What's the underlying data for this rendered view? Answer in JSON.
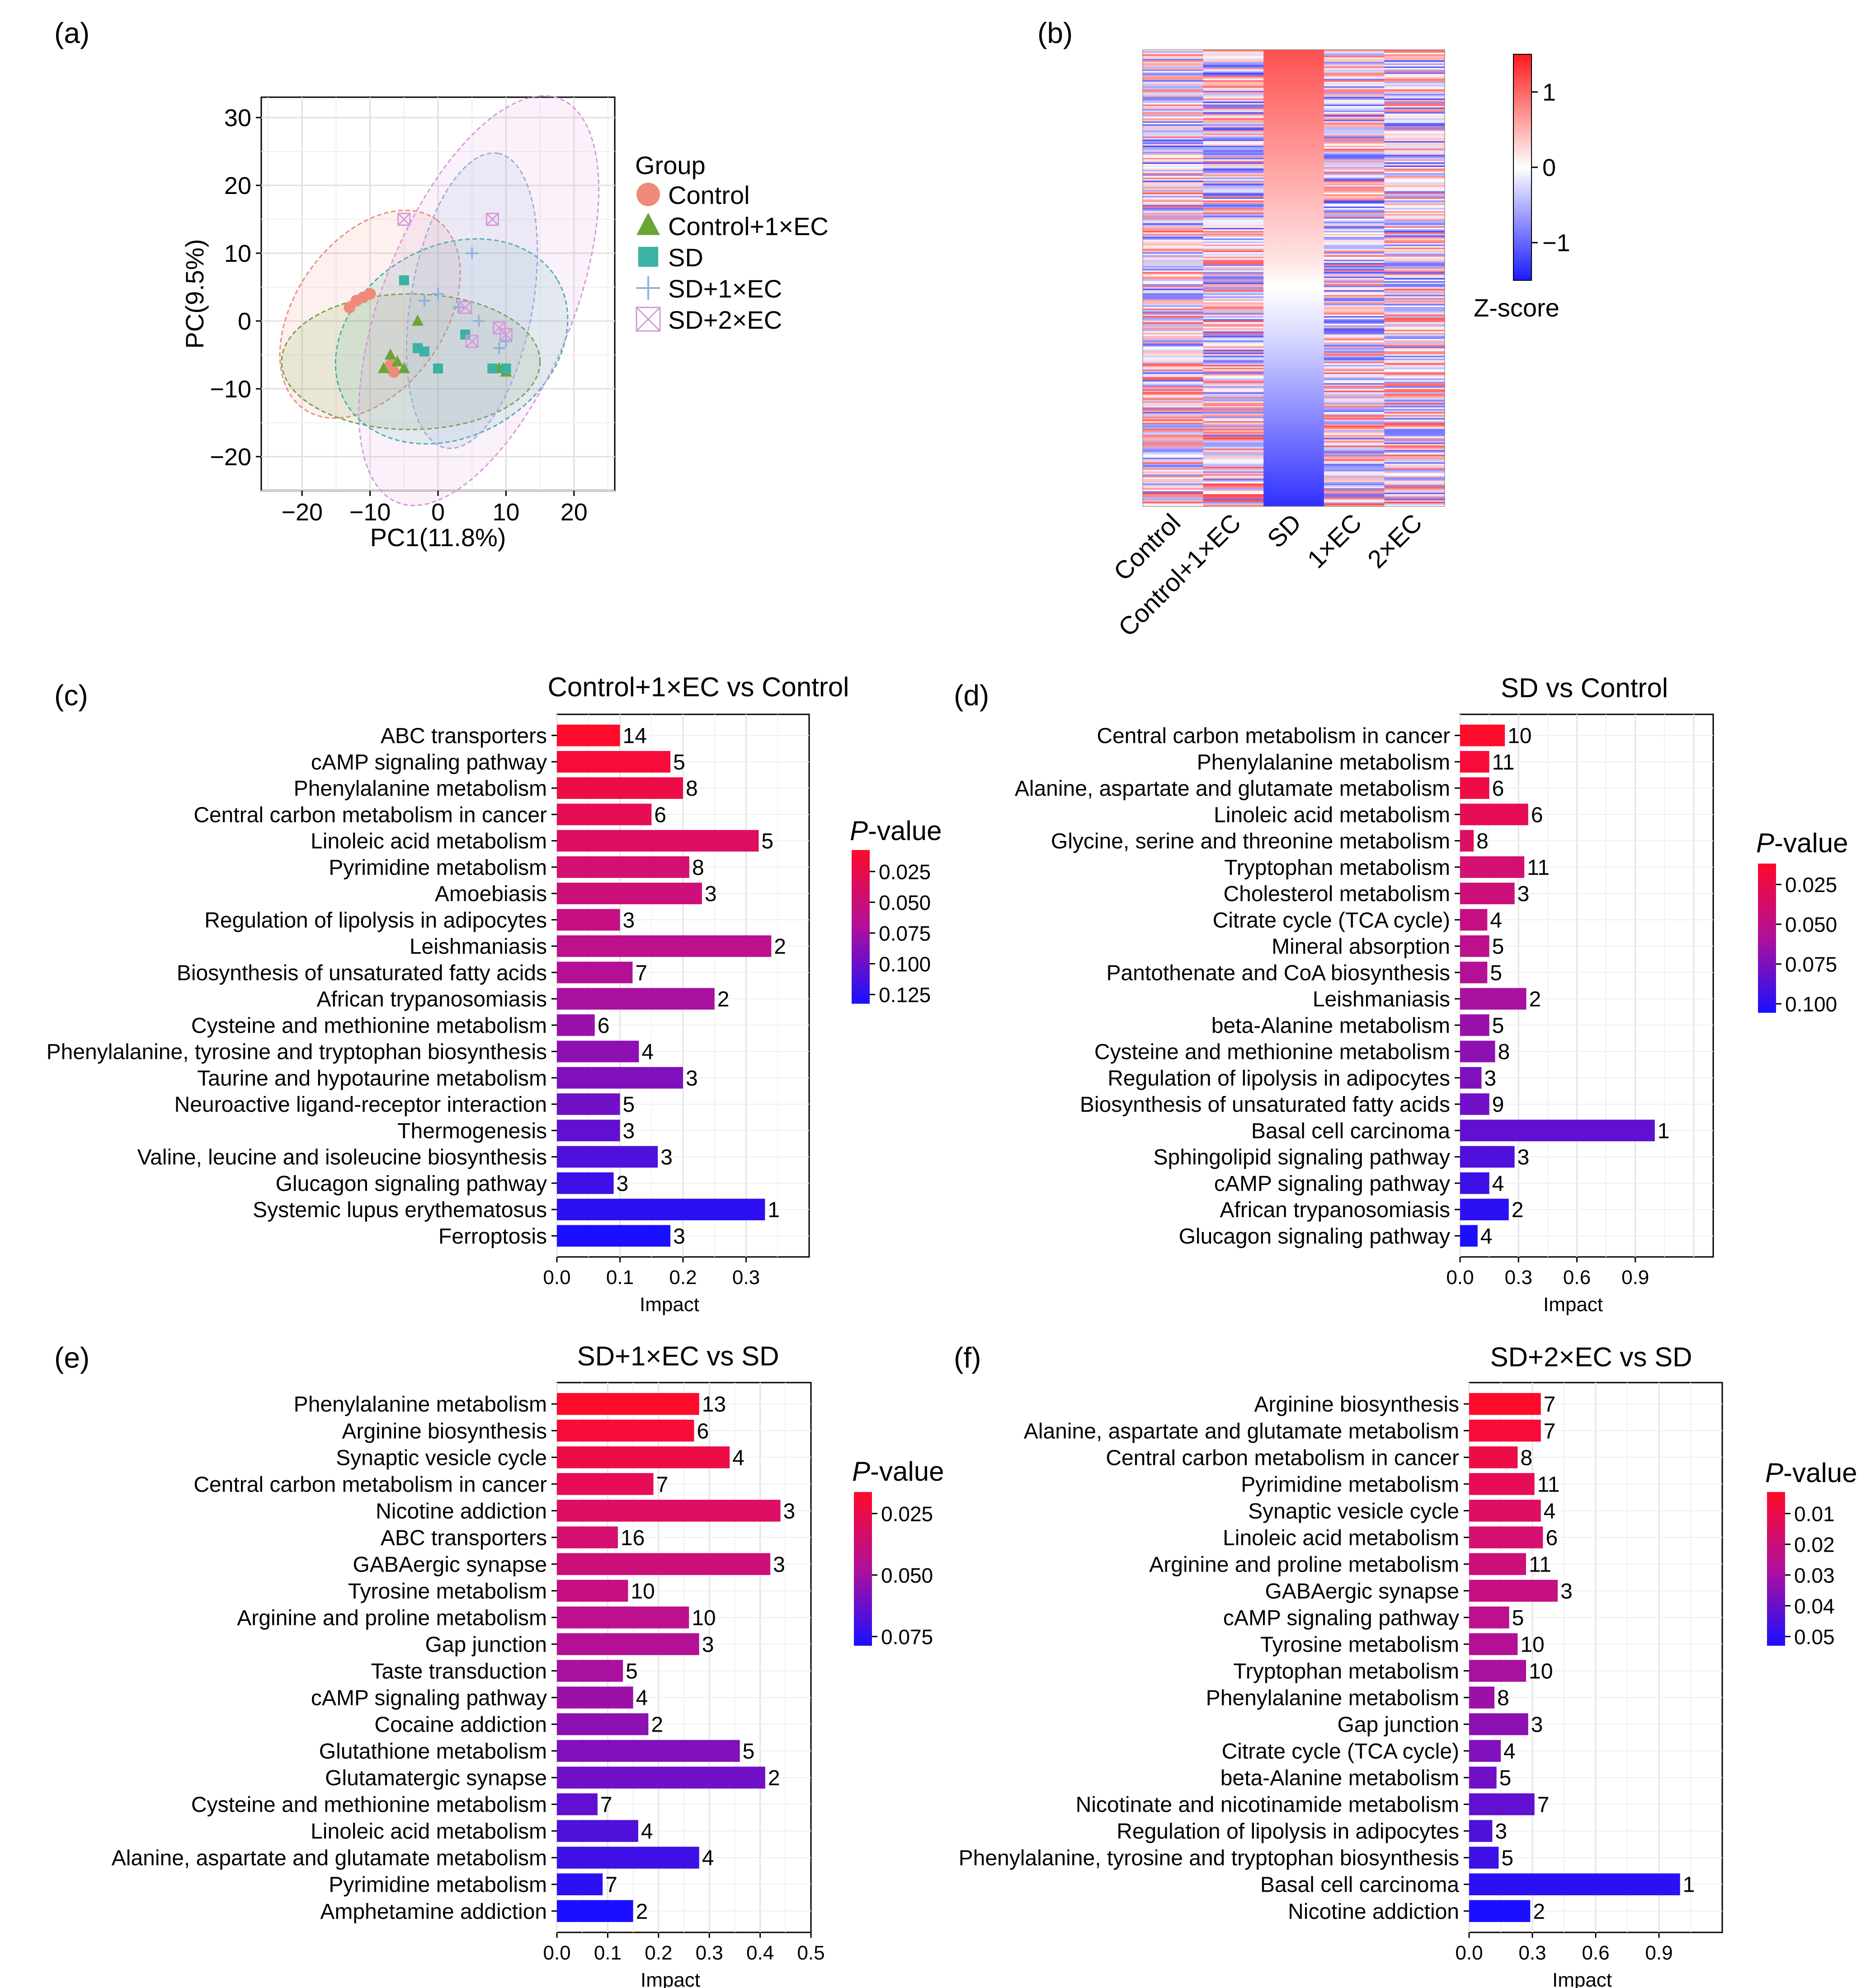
{
  "colors": {
    "control": "#f08a7a",
    "control_ec": "#6aa537",
    "sd": "#3bb2a4",
    "sd_1ec": "#8fb1de",
    "sd_2ec": "#d896dc",
    "heat_high": "#ff2a2a",
    "heat_mid": "#ffffff",
    "heat_low": "#1a1aff"
  },
  "panels": {
    "a": {
      "label": "(a)"
    },
    "b": {
      "label": "(b)"
    },
    "c": {
      "label": "(c)"
    },
    "d": {
      "label": "(d)"
    },
    "e": {
      "label": "(e)"
    },
    "f": {
      "label": "(f)"
    }
  },
  "chart_data": [
    {
      "id": "a",
      "type": "scatter",
      "xlabel": "PC1(11.8%)",
      "ylabel": "PC(9.5%)",
      "xlim": [
        -26,
        26
      ],
      "ylim": [
        -25,
        33
      ],
      "xticks": [
        -20,
        -10,
        0,
        10,
        20
      ],
      "yticks": [
        -20,
        -10,
        0,
        10,
        20,
        30
      ],
      "legend_title": "Group",
      "series": [
        {
          "name": "Control",
          "marker": "circle",
          "color_key": "control",
          "points": [
            [
              -13,
              2
            ],
            [
              -12,
              3
            ],
            [
              -11,
              3.5
            ],
            [
              -10,
              4
            ],
            [
              -7,
              -6.5
            ],
            [
              -6.5,
              -7.5
            ]
          ],
          "ellipse": {
            "cx": -10,
            "cy": 1,
            "rx": 17,
            "ry": 11,
            "angle": -55
          }
        },
        {
          "name": "Control+1×EC",
          "marker": "triangle",
          "color_key": "control_ec",
          "points": [
            [
              -8,
              -7
            ],
            [
              -7,
              -5
            ],
            [
              -6,
              -6
            ],
            [
              -5,
              -7
            ],
            [
              -3,
              0
            ],
            [
              9,
              -7
            ],
            [
              10,
              -7.5
            ]
          ],
          "ellipse": {
            "cx": -4,
            "cy": -6,
            "rx": 19,
            "ry": 10,
            "angle": 0
          }
        },
        {
          "name": "SD",
          "marker": "square",
          "color_key": "sd",
          "points": [
            [
              -5,
              6
            ],
            [
              -3,
              -4
            ],
            [
              -2,
              -4.5
            ],
            [
              0,
              -7
            ],
            [
              4,
              -2
            ],
            [
              8,
              -7
            ],
            [
              10,
              -7
            ]
          ],
          "ellipse": {
            "cx": 2,
            "cy": -3,
            "rx": 18,
            "ry": 14,
            "angle": -30
          }
        },
        {
          "name": "SD+1×EC",
          "marker": "plus",
          "color_key": "sd_1ec",
          "points": [
            [
              -2,
              3
            ],
            [
              0,
              4
            ],
            [
              3,
              2
            ],
            [
              5,
              10
            ],
            [
              6,
              0
            ],
            [
              9,
              -4
            ],
            [
              10,
              -3
            ]
          ],
          "ellipse": {
            "cx": 5,
            "cy": 3,
            "rx": 22,
            "ry": 9,
            "angle": -80
          }
        },
        {
          "name": "SD+2×EC",
          "marker": "boxx",
          "color_key": "sd_2ec",
          "points": [
            [
              -5,
              15
            ],
            [
              4,
              2
            ],
            [
              5,
              -3
            ],
            [
              8,
              15
            ],
            [
              9,
              -1
            ],
            [
              10,
              -2
            ]
          ],
          "ellipse": {
            "cx": 6,
            "cy": 3,
            "rx": 32,
            "ry": 14,
            "angle": -68
          }
        }
      ]
    },
    {
      "id": "b",
      "type": "heatmap",
      "columns": [
        "Control",
        "Control+1×EC",
        "SD",
        "1×EC",
        "2×EC"
      ],
      "legend_title": "Z-score",
      "legend_ticks": [
        1,
        0,
        -1
      ],
      "legend_tick_labels": [
        "1",
        "0",
        "−1"
      ],
      "z_range": [
        -1.5,
        1.5
      ],
      "n_rows": 300,
      "sd_column_trend": "sorted descending from high (top) to low (bottom)"
    },
    {
      "id": "c",
      "type": "bar",
      "title": "Control+1×EC vs Control",
      "xlabel": "Impact",
      "xlim": [
        0,
        0.4
      ],
      "xticks": [
        0,
        0.1,
        0.2,
        0.3
      ],
      "xtick_labels": [
        "0.0",
        "0.1",
        "0.2",
        "0.3"
      ],
      "legend_title": "P-value",
      "legend_ticks": [
        "0.025",
        "0.050",
        "0.075",
        "0.100",
        "0.125"
      ],
      "categories": [
        "ABC transporters",
        "cAMP signaling pathway",
        "Phenylalanine metabolism",
        "Central carbon metabolism in cancer",
        "Linoleic acid metabolism",
        "Pyrimidine metabolism",
        "Amoebiasis",
        "Regulation of lipolysis in adipocytes",
        "Leishmaniasis",
        "Biosynthesis of unsaturated fatty acids",
        "African trypanosomiasis",
        "Cysteine and methionine metabolism",
        "Phenylalanine, tyrosine and tryptophan biosynthesis",
        "Taurine and hypotaurine metabolism",
        "Neuroactive ligand-receptor interaction",
        "Thermogenesis",
        "Valine, leucine and isoleucine biosynthesis",
        "Glucagon signaling pathway",
        "Systemic lupus erythematosus",
        "Ferroptosis"
      ],
      "values": [
        0.1,
        0.18,
        0.2,
        0.15,
        0.32,
        0.21,
        0.23,
        0.1,
        0.34,
        0.12,
        0.25,
        0.06,
        0.13,
        0.2,
        0.1,
        0.1,
        0.16,
        0.09,
        0.33,
        0.18
      ],
      "counts": [
        14,
        5,
        8,
        6,
        5,
        8,
        3,
        3,
        2,
        7,
        2,
        6,
        4,
        3,
        5,
        3,
        3,
        3,
        1,
        3
      ]
    },
    {
      "id": "d",
      "type": "bar",
      "title": "SD vs Control",
      "xlabel": "Impact",
      "xlim": [
        0,
        1.3
      ],
      "xticks": [
        0,
        0.3,
        0.6,
        0.9
      ],
      "xtick_labels": [
        "0.0",
        "0.3",
        "0.6",
        "0.9"
      ],
      "legend_title": "P-value",
      "legend_ticks": [
        "0.025",
        "0.050",
        "0.075",
        "0.100"
      ],
      "categories": [
        "Central carbon metabolism in cancer",
        "Phenylalanine metabolism",
        "Alanine, aspartate and glutamate metabolism",
        "Linoleic acid metabolism",
        "Glycine, serine and threonine metabolism",
        "Tryptophan metabolism",
        "Cholesterol metabolism",
        "Citrate cycle (TCA cycle)",
        "Mineral absorption",
        "Pantothenate and CoA biosynthesis",
        "Leishmaniasis",
        "beta-Alanine metabolism",
        "Cysteine and methionine metabolism",
        "Regulation of lipolysis in adipocytes",
        "Biosynthesis of unsaturated fatty acids",
        "Basal cell carcinoma",
        "Sphingolipid signaling pathway",
        "cAMP signaling pathway",
        "African trypanosomiasis",
        "Glucagon signaling pathway"
      ],
      "values": [
        0.23,
        0.15,
        0.15,
        0.35,
        0.07,
        0.33,
        0.28,
        0.14,
        0.15,
        0.14,
        0.34,
        0.15,
        0.18,
        0.11,
        0.15,
        1.0,
        0.28,
        0.15,
        0.25,
        0.09
      ],
      "counts": [
        10,
        11,
        6,
        6,
        8,
        11,
        3,
        4,
        5,
        5,
        2,
        5,
        8,
        3,
        9,
        1,
        3,
        4,
        2,
        4
      ]
    },
    {
      "id": "e",
      "type": "bar",
      "title": "SD+1×EC vs SD",
      "xlabel": "Impact",
      "xlim": [
        0,
        0.5
      ],
      "xticks": [
        0,
        0.1,
        0.2,
        0.3,
        0.4,
        0.5
      ],
      "xtick_labels": [
        "0.0",
        "0.1",
        "0.2",
        "0.3",
        "0.4",
        "0.5"
      ],
      "legend_title": "P-value",
      "legend_ticks": [
        "0.025",
        "0.050",
        "0.075"
      ],
      "categories": [
        "Phenylalanine metabolism",
        "Arginine biosynthesis",
        "Synaptic vesicle cycle",
        "Central carbon metabolism in cancer",
        "Nicotine addiction",
        "ABC transporters",
        "GABAergic synapse",
        "Tyrosine metabolism",
        "Arginine and proline metabolism",
        "Gap junction",
        "Taste transduction",
        "cAMP signaling pathway",
        "Cocaine addiction",
        "Glutathione metabolism",
        "Glutamatergic synapse",
        "Cysteine and methionine metabolism",
        "Linoleic acid metabolism",
        "Alanine, aspartate and glutamate metabolism",
        "Pyrimidine metabolism",
        "Amphetamine addiction"
      ],
      "values": [
        0.28,
        0.27,
        0.34,
        0.19,
        0.44,
        0.12,
        0.42,
        0.14,
        0.26,
        0.28,
        0.13,
        0.15,
        0.18,
        0.36,
        0.41,
        0.08,
        0.16,
        0.28,
        0.09,
        0.15
      ],
      "counts": [
        13,
        6,
        4,
        7,
        3,
        16,
        3,
        10,
        10,
        3,
        5,
        4,
        2,
        5,
        2,
        7,
        4,
        4,
        7,
        2
      ]
    },
    {
      "id": "f",
      "type": "bar",
      "title": "SD+2×EC vs SD",
      "xlabel": "Impact",
      "xlim": [
        0,
        1.2
      ],
      "xticks": [
        0,
        0.3,
        0.6,
        0.9
      ],
      "xtick_labels": [
        "0.0",
        "0.3",
        "0.6",
        "0.9"
      ],
      "legend_title": "P-value",
      "legend_ticks": [
        "0.01",
        "0.02",
        "0.03",
        "0.04",
        "0.05"
      ],
      "categories": [
        "Arginine biosynthesis",
        "Alanine, aspartate and glutamate metabolism",
        "Central carbon metabolism in cancer",
        "Pyrimidine metabolism",
        "Synaptic vesicle cycle",
        "Linoleic acid metabolism",
        "Arginine and proline metabolism",
        "GABAergic synapse",
        "cAMP signaling pathway",
        "Tyrosine metabolism",
        "Tryptophan metabolism",
        "Phenylalanine metabolism",
        "Gap junction",
        "Citrate cycle (TCA cycle)",
        "beta-Alanine metabolism",
        "Nicotinate and nicotinamide metabolism",
        "Regulation of lipolysis in adipocytes",
        "Phenylalanine, tyrosine and tryptophan biosynthesis",
        "Basal cell carcinoma",
        "Nicotine addiction"
      ],
      "values": [
        0.34,
        0.34,
        0.23,
        0.31,
        0.34,
        0.35,
        0.27,
        0.42,
        0.19,
        0.23,
        0.27,
        0.12,
        0.28,
        0.15,
        0.13,
        0.31,
        0.11,
        0.14,
        1.0,
        0.29
      ],
      "counts": [
        7,
        7,
        8,
        11,
        4,
        6,
        11,
        3,
        5,
        10,
        10,
        8,
        3,
        4,
        5,
        7,
        3,
        5,
        1,
        2
      ]
    }
  ]
}
